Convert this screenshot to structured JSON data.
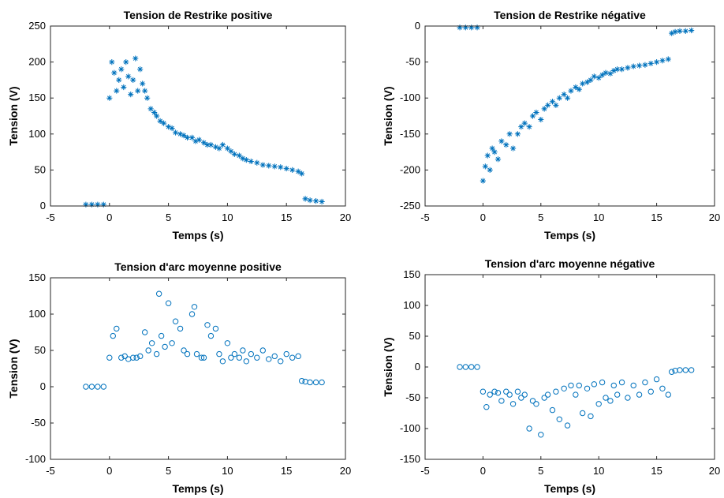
{
  "chart_data": [
    {
      "type": "scatter",
      "title": "Tension de Restrike positive",
      "xlabel": "Temps (s)",
      "ylabel": "Tension (V)",
      "xlim": [
        -5,
        20
      ],
      "ylim": [
        0,
        250
      ],
      "xticks": [
        -5,
        0,
        5,
        10,
        15,
        20
      ],
      "yticks": [
        0,
        50,
        100,
        150,
        200,
        250
      ],
      "marker": "asterisk",
      "color": "#0072BD",
      "grid": false,
      "series": [
        {
          "x": [
            -2,
            -1.5,
            -1,
            -0.5,
            0,
            0.2,
            0.4,
            0.6,
            0.8,
            1,
            1.2,
            1.4,
            1.6,
            1.8,
            2,
            2.2,
            2.4,
            2.6,
            2.8,
            3,
            3.2,
            3.5,
            3.8,
            4,
            4.3,
            4.6,
            5,
            5.3,
            5.6,
            6,
            6.3,
            6.6,
            7,
            7.3,
            7.6,
            8,
            8.3,
            8.6,
            9,
            9.3,
            9.6,
            10,
            10.3,
            10.6,
            11,
            11.3,
            11.6,
            12,
            12.5,
            13,
            13.5,
            14,
            14.5,
            15,
            15.5,
            16,
            16.3,
            16.6,
            17,
            17.5,
            18
          ],
          "y": [
            2,
            2,
            2,
            2,
            150,
            200,
            185,
            160,
            175,
            190,
            165,
            200,
            180,
            155,
            175,
            205,
            160,
            190,
            170,
            160,
            150,
            135,
            130,
            125,
            118,
            115,
            110,
            108,
            102,
            100,
            98,
            95,
            95,
            90,
            92,
            88,
            85,
            85,
            82,
            80,
            85,
            80,
            76,
            72,
            70,
            66,
            64,
            62,
            60,
            57,
            56,
            55,
            54,
            52,
            50,
            48,
            45,
            10,
            8,
            7,
            6
          ]
        }
      ]
    },
    {
      "type": "scatter",
      "title": "Tension de Restrike négative",
      "xlabel": "Temps (s)",
      "ylabel": "Tension (V)",
      "xlim": [
        -5,
        20
      ],
      "ylim": [
        -250,
        0
      ],
      "xticks": [
        -5,
        0,
        5,
        10,
        15,
        20
      ],
      "yticks": [
        -250,
        -200,
        -150,
        -100,
        -50,
        0
      ],
      "marker": "asterisk",
      "color": "#0072BD",
      "grid": false,
      "series": [
        {
          "x": [
            -2,
            -1.5,
            -1,
            -0.5,
            0,
            0.2,
            0.4,
            0.6,
            0.8,
            1,
            1.3,
            1.6,
            2,
            2.3,
            2.6,
            3,
            3.3,
            3.6,
            4,
            4.3,
            4.6,
            5,
            5.3,
            5.6,
            6,
            6.3,
            6.6,
            7,
            7.3,
            7.6,
            8,
            8.3,
            8.6,
            9,
            9.3,
            9.6,
            10,
            10.3,
            10.6,
            11,
            11.3,
            11.6,
            12,
            12.5,
            13,
            13.5,
            14,
            14.5,
            15,
            15.5,
            16,
            16.3,
            16.6,
            17,
            17.5,
            18
          ],
          "y": [
            -2,
            -2,
            -2,
            -2,
            -215,
            -195,
            -180,
            -200,
            -170,
            -175,
            -185,
            -160,
            -165,
            -150,
            -170,
            -150,
            -140,
            -135,
            -140,
            -125,
            -120,
            -130,
            -115,
            -110,
            -105,
            -110,
            -100,
            -95,
            -100,
            -90,
            -85,
            -88,
            -80,
            -78,
            -75,
            -70,
            -72,
            -68,
            -65,
            -66,
            -62,
            -60,
            -60,
            -58,
            -56,
            -55,
            -54,
            -52,
            -50,
            -48,
            -46,
            -10,
            -8,
            -7,
            -7,
            -6
          ]
        }
      ]
    },
    {
      "type": "scatter",
      "title": "Tension d'arc moyenne  positive",
      "xlabel": "Temps (s)",
      "ylabel": "Tension (V)",
      "xlim": [
        -5,
        20
      ],
      "ylim": [
        -100,
        150
      ],
      "xticks": [
        -5,
        0,
        5,
        10,
        15,
        20
      ],
      "yticks": [
        -100,
        -50,
        0,
        50,
        100,
        150
      ],
      "marker": "circle",
      "color": "#0072BD",
      "grid": false,
      "series": [
        {
          "x": [
            -2,
            -1.5,
            -1,
            -0.5,
            0,
            0.3,
            0.6,
            1,
            1.3,
            1.6,
            2,
            2.3,
            2.6,
            3,
            3.3,
            3.6,
            4,
            4.2,
            4.4,
            4.7,
            5,
            5.3,
            5.6,
            6,
            6.3,
            6.6,
            7,
            7.2,
            7.4,
            7.8,
            8,
            8.3,
            8.6,
            9,
            9.3,
            9.6,
            10,
            10.3,
            10.6,
            11,
            11.3,
            11.6,
            12,
            12.5,
            13,
            13.5,
            14,
            14.5,
            15,
            15.5,
            16,
            16.3,
            16.6,
            17,
            17.5,
            18
          ],
          "y": [
            0,
            0,
            0,
            0,
            40,
            70,
            80,
            40,
            42,
            38,
            40,
            40,
            42,
            75,
            50,
            60,
            45,
            128,
            70,
            55,
            115,
            60,
            90,
            80,
            50,
            45,
            100,
            110,
            45,
            40,
            40,
            85,
            70,
            80,
            45,
            35,
            60,
            40,
            45,
            40,
            50,
            35,
            45,
            40,
            50,
            38,
            42,
            35,
            45,
            40,
            42,
            8,
            7,
            6,
            6,
            6
          ]
        }
      ]
    },
    {
      "type": "scatter",
      "title": "Tension d'arc moyenne négative",
      "xlabel": "Temps (s)",
      "ylabel": "Tension (V)",
      "xlim": [
        -5,
        20
      ],
      "ylim": [
        -150,
        150
      ],
      "xticks": [
        -5,
        0,
        5,
        10,
        15,
        20
      ],
      "yticks": [
        -150,
        -100,
        -50,
        0,
        50,
        100,
        150
      ],
      "marker": "circle",
      "color": "#0072BD",
      "grid": false,
      "series": [
        {
          "x": [
            -2,
            -1.5,
            -1,
            -0.5,
            0,
            0.3,
            0.6,
            1,
            1.3,
            1.6,
            2,
            2.3,
            2.6,
            3,
            3.3,
            3.6,
            4,
            4.3,
            4.6,
            5,
            5.3,
            5.6,
            6,
            6.3,
            6.6,
            7,
            7.3,
            7.6,
            8,
            8.3,
            8.6,
            9,
            9.3,
            9.6,
            10,
            10.3,
            10.6,
            11,
            11.3,
            11.6,
            12,
            12.5,
            13,
            13.5,
            14,
            14.5,
            15,
            15.5,
            16,
            16.3,
            16.6,
            17,
            17.5,
            18
          ],
          "y": [
            0,
            0,
            0,
            0,
            -40,
            -65,
            -45,
            -40,
            -42,
            -55,
            -40,
            -45,
            -60,
            -40,
            -50,
            -45,
            -100,
            -55,
            -60,
            -110,
            -50,
            -45,
            -70,
            -40,
            -85,
            -35,
            -95,
            -30,
            -45,
            -30,
            -75,
            -35,
            -80,
            -28,
            -60,
            -25,
            -50,
            -55,
            -30,
            -45,
            -25,
            -50,
            -30,
            -45,
            -25,
            -40,
            -20,
            -35,
            -45,
            -8,
            -6,
            -5,
            -5,
            -5
          ]
        }
      ]
    }
  ]
}
